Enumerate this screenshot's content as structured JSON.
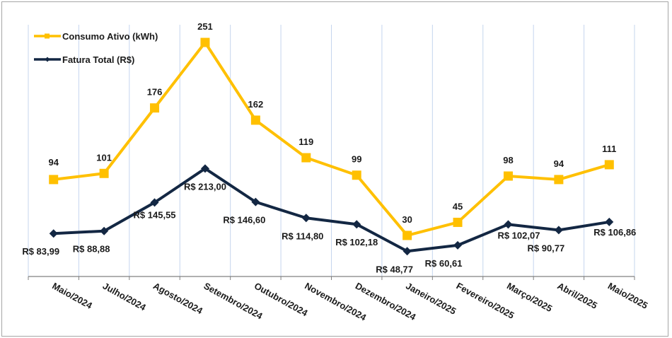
{
  "chart_data": {
    "type": "line",
    "title": "",
    "xlabel": "",
    "ylabel": "",
    "grid": "vertical",
    "legend_position": "top-left",
    "categories": [
      "Maio/2024",
      "Julho/2024",
      "Agosto/2024",
      "Setembro/2024",
      "Outubro/2024",
      "Novembro/2024",
      "Dezembro/2024",
      "Janeiro/2025",
      "Fevereiro/2025",
      "Março/2025",
      "Abril/2025",
      "Maio/2025"
    ],
    "series": [
      {
        "name": "Consumo Ativo (kWh)",
        "color": "#FFC000",
        "marker": "square",
        "values": [
          94,
          101,
          176,
          251,
          162,
          119,
          99,
          30,
          45,
          98,
          94,
          111
        ],
        "labels": [
          "94",
          "101",
          "176",
          "251",
          "162",
          "119",
          "99",
          "30",
          "45",
          "98",
          "94",
          "111"
        ]
      },
      {
        "name": "Fatura Total (R$)",
        "color": "#132743",
        "marker": "diamond",
        "values": [
          83.99,
          88.88,
          145.55,
          213.0,
          146.6,
          114.8,
          102.18,
          48.77,
          60.61,
          102.07,
          90.77,
          106.86
        ],
        "labels": [
          "R$ 83,99",
          "R$ 88,88",
          "R$ 145,55",
          "R$ 213,00",
          "R$ 146,60",
          "R$ 114,80",
          "R$ 102,18",
          "R$ 48,77",
          "R$ 60,61",
          "R$ 102,07",
          "R$ 90,77",
          "R$ 106,86"
        ]
      }
    ]
  }
}
